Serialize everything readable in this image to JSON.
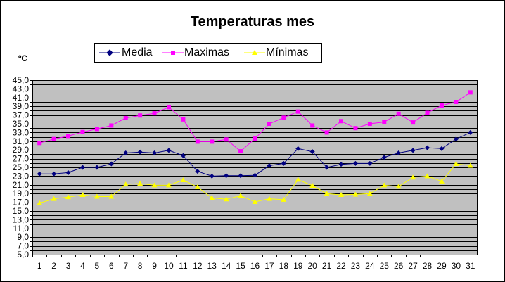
{
  "chart_data": {
    "type": "line",
    "title": "Temperaturas mes",
    "ylabel": "ºC",
    "xlabel": "",
    "ylim": [
      5,
      45
    ],
    "ytick_step": 2,
    "ytick_labels": [
      "5,0",
      "7,0",
      "9,0",
      "11,0",
      "13,0",
      "15,0",
      "17,0",
      "19,0",
      "21,0",
      "23,0",
      "25,0",
      "27,0",
      "29,0",
      "31,0",
      "33,0",
      "35,0",
      "37,0",
      "39,0",
      "41,0",
      "43,0",
      "45,0"
    ],
    "categories": [
      "1",
      "2",
      "3",
      "4",
      "5",
      "6",
      "7",
      "8",
      "9",
      "10",
      "11",
      "12",
      "13",
      "14",
      "15",
      "16",
      "17",
      "18",
      "19",
      "20",
      "21",
      "22",
      "23",
      "24",
      "25",
      "26",
      "27",
      "28",
      "29",
      "30",
      "31"
    ],
    "grid": true,
    "legend_position": "top",
    "background_color": "#c0c0c0",
    "series": [
      {
        "name": "Media",
        "color": "#000080",
        "marker": "diamond",
        "values": [
          23.5,
          23.5,
          23.8,
          25.0,
          25.0,
          25.8,
          28.3,
          28.5,
          28.3,
          28.9,
          27.7,
          24.1,
          23.0,
          23.1,
          23.1,
          23.2,
          25.4,
          25.9,
          29.3,
          28.6,
          25.0,
          25.7,
          25.9,
          25.9,
          27.3,
          28.3,
          28.9,
          29.5,
          29.3,
          31.5,
          33.0
        ]
      },
      {
        "name": "Maximas",
        "color": "#ff00ff",
        "marker": "square",
        "values": [
          30.6,
          31.5,
          32.2,
          33.1,
          33.8,
          34.6,
          36.3,
          36.9,
          37.4,
          38.8,
          36.0,
          30.9,
          30.9,
          31.4,
          28.7,
          31.6,
          35.0,
          36.4,
          37.8,
          34.6,
          33.0,
          35.6,
          34.0,
          35.0,
          35.4,
          37.3,
          35.3,
          37.5,
          39.2,
          40.0,
          42.2
        ]
      },
      {
        "name": "Mínimas",
        "color": "#ffff00",
        "marker": "triangle",
        "values": [
          16.8,
          17.8,
          18.2,
          18.7,
          18.3,
          18.3,
          21.1,
          21.3,
          20.9,
          20.9,
          22.1,
          20.5,
          18.0,
          17.7,
          18.5,
          17.1,
          17.8,
          17.6,
          22.2,
          20.8,
          19.0,
          18.7,
          18.8,
          19.0,
          20.9,
          20.6,
          22.7,
          23.0,
          21.8,
          25.8,
          25.4
        ]
      }
    ]
  }
}
